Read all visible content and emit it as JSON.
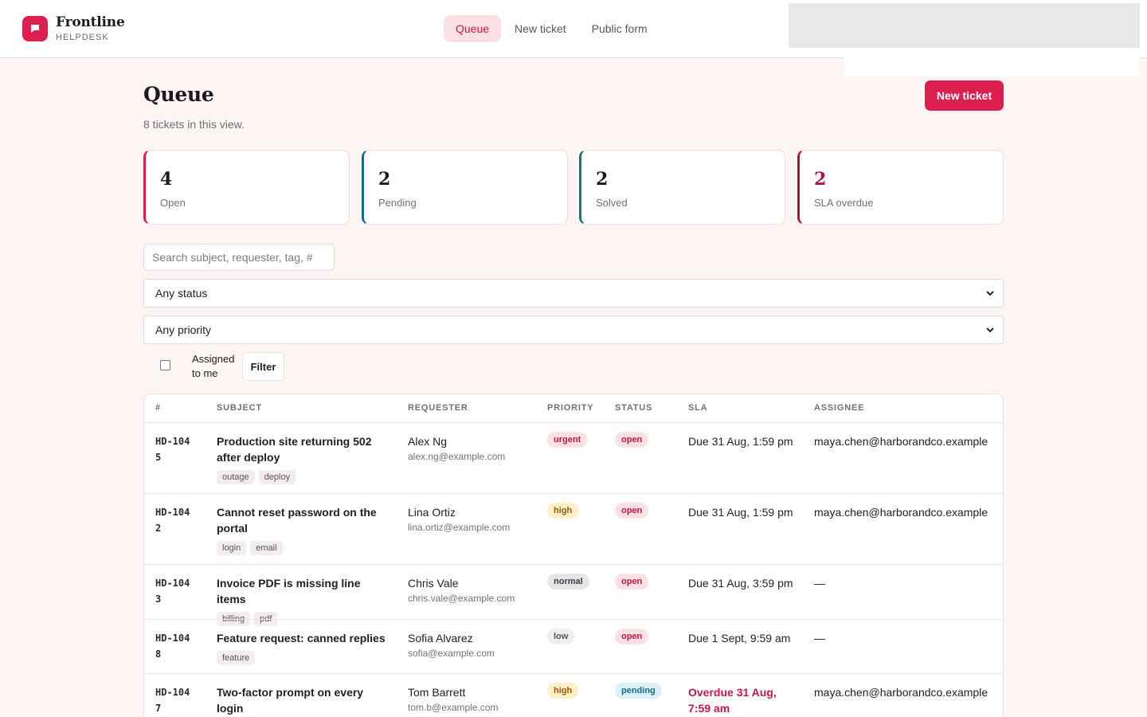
{
  "brand": {
    "name": "Frontline",
    "sub": "HELPDESK",
    "logo_icon": "chat-bubble-icon",
    "color": "#dc1f4f"
  },
  "nav": [
    {
      "label": "Queue",
      "active": true
    },
    {
      "label": "New ticket",
      "active": false
    },
    {
      "label": "Public form",
      "active": false
    }
  ],
  "page": {
    "title": "Queue",
    "subtitle": "8 tickets in this view.",
    "new_ticket_button": "New ticket"
  },
  "stats": [
    {
      "value": "4",
      "label": "Open",
      "accent": "#dc1f4f",
      "value_color": "#1a1a1f"
    },
    {
      "value": "2",
      "label": "Pending",
      "accent": "#176a8e",
      "value_color": "#1a1a1f"
    },
    {
      "value": "2",
      "label": "Solved",
      "accent": "#127a6a",
      "value_color": "#1a1a1f"
    },
    {
      "value": "2",
      "label": "SLA overdue",
      "accent": "#b3123e",
      "value_color": "#b3123e"
    }
  ],
  "filters": {
    "search_placeholder": "Search subject, requester, tag, #",
    "status_select": "Any status",
    "priority_select": "Any priority",
    "assigned_label": "Assigned to me",
    "assigned_checked": false,
    "filter_button": "Filter"
  },
  "table": {
    "columns": [
      "#",
      "SUBJECT",
      "REQUESTER",
      "PRIORITY",
      "STATUS",
      "SLA",
      "ASSIGNEE"
    ],
    "rows": [
      {
        "id": "HD-1045",
        "subject": "Production site returning 502 after deploy",
        "tags": [
          "outage",
          "deploy"
        ],
        "requester": "Alex Ng",
        "email": "alex.ng@example.com",
        "priority": "urgent",
        "status": "open",
        "sla": "Due 31 Aug, 1:59 pm",
        "sla_overdue": false,
        "assignee": "maya.chen@harborandco.example"
      },
      {
        "id": "HD-1042",
        "subject": "Cannot reset password on the portal",
        "tags": [
          "login",
          "email"
        ],
        "requester": "Lina Ortiz",
        "email": "lina.ortiz@example.com",
        "priority": "high",
        "status": "open",
        "sla": "Due 31 Aug, 1:59 pm",
        "sla_overdue": false,
        "assignee": "maya.chen@harborandco.example"
      },
      {
        "id": "HD-1043",
        "subject": "Invoice PDF is missing line items",
        "tags": [
          "billing",
          "pdf"
        ],
        "requester": "Chris Vale",
        "email": "chris.vale@example.com",
        "priority": "normal",
        "status": "open",
        "sla": "Due 31 Aug, 3:59 pm",
        "sla_overdue": false,
        "assignee": "—"
      },
      {
        "id": "HD-1048",
        "subject": "Feature request: canned replies",
        "tags": [
          "feature"
        ],
        "requester": "Sofia Alvarez",
        "email": "sofia@example.com",
        "priority": "low",
        "status": "open",
        "sla": "Due 1 Sept, 9:59 am",
        "sla_overdue": false,
        "assignee": "—"
      },
      {
        "id": "HD-1047",
        "subject": "Two-factor prompt on every login",
        "tags": [],
        "requester": "Tom Barrett",
        "email": "tom.b@example.com",
        "priority": "high",
        "status": "pending",
        "sla": "Overdue 31 Aug, 7:59 am",
        "sla_overdue": true,
        "assignee": "maya.chen@harborandco.example"
      }
    ]
  },
  "pill_colors": {
    "urgent": {
      "bg": "#fbe1e5",
      "fg": "#c8173f"
    },
    "high": {
      "bg": "#fdf0c8",
      "fg": "#9a5a0a"
    },
    "normal": {
      "bg": "#e6e6e8",
      "fg": "#3d3d44"
    },
    "low": {
      "bg": "#f1eeee",
      "fg": "#55555c"
    },
    "open": {
      "bg": "#fbe1e5",
      "fg": "#c8173f"
    },
    "pending": {
      "bg": "#dcf0f8",
      "fg": "#176a8e"
    }
  }
}
